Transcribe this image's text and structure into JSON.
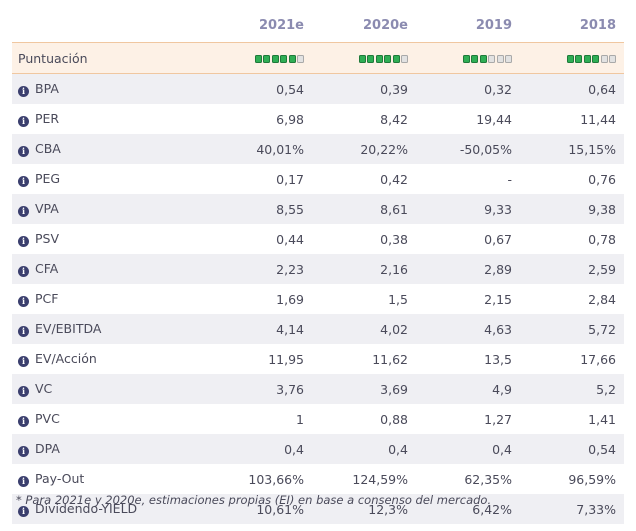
{
  "header": {
    "label_header": "",
    "years": [
      "2021e",
      "2020e",
      "2019",
      "2018"
    ]
  },
  "score": {
    "label": "Puntuación",
    "ratings": [
      5,
      5,
      3,
      4
    ],
    "max": 6
  },
  "rows": [
    {
      "label": "BPA",
      "values": [
        "0,54",
        "0,39",
        "0,32",
        "0,64"
      ]
    },
    {
      "label": "PER",
      "values": [
        "6,98",
        "8,42",
        "19,44",
        "11,44"
      ]
    },
    {
      "label": "CBA",
      "values": [
        "40,01%",
        "20,22%",
        "-50,05%",
        "15,15%"
      ]
    },
    {
      "label": "PEG",
      "values": [
        "0,17",
        "0,42",
        "-",
        "0,76"
      ]
    },
    {
      "label": "VPA",
      "values": [
        "8,55",
        "8,61",
        "9,33",
        "9,38"
      ]
    },
    {
      "label": "PSV",
      "values": [
        "0,44",
        "0,38",
        "0,67",
        "0,78"
      ]
    },
    {
      "label": "CFA",
      "values": [
        "2,23",
        "2,16",
        "2,89",
        "2,59"
      ]
    },
    {
      "label": "PCF",
      "values": [
        "1,69",
        "1,5",
        "2,15",
        "2,84"
      ]
    },
    {
      "label": "EV/EBITDA",
      "values": [
        "4,14",
        "4,02",
        "4,63",
        "5,72"
      ]
    },
    {
      "label": "EV/Acción",
      "values": [
        "11,95",
        "11,62",
        "13,5",
        "17,66"
      ]
    },
    {
      "label": "VC",
      "values": [
        "3,76",
        "3,69",
        "4,9",
        "5,2"
      ]
    },
    {
      "label": "PVC",
      "values": [
        "1",
        "0,88",
        "1,27",
        "1,41"
      ]
    },
    {
      "label": "DPA",
      "values": [
        "0,4",
        "0,4",
        "0,4",
        "0,54"
      ]
    },
    {
      "label": "Pay-Out",
      "values": [
        "103,66%",
        "124,59%",
        "62,35%",
        "96,59%"
      ]
    },
    {
      "label": "Dividendo-YIELD",
      "values": [
        "10,61%",
        "12,3%",
        "6,42%",
        "7,33%"
      ]
    }
  ],
  "info_glyph": "i",
  "icons": {
    "info": "info-circle-icon"
  },
  "colors": {
    "dot_on": "#2fae55",
    "dot_off": "#e2e2e2",
    "score_bg": "#fdf1e6",
    "header_text": "#8b8bb0"
  },
  "footnote": "* Para 2021e y 2020e, estimaciones propias (EI) en base a consenso del mercado."
}
